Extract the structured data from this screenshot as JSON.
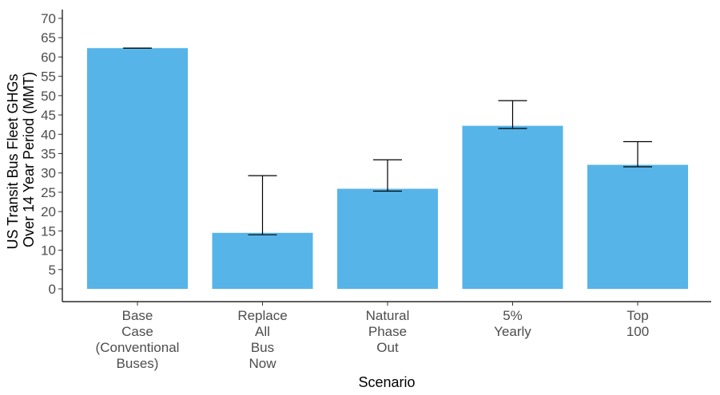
{
  "chart_data": {
    "type": "bar",
    "title": "",
    "xlabel": "Scenario",
    "ylabel_lines": [
      "US Transit Bus Fleet GHGs",
      "Over 14 Year Period (MMT)"
    ],
    "ylim": [
      0,
      70
    ],
    "yticks": [
      0,
      5,
      10,
      15,
      20,
      25,
      30,
      35,
      40,
      45,
      50,
      55,
      60,
      65,
      70
    ],
    "categories": [
      [
        "Base",
        "Case",
        "(Conventional",
        "Buses)"
      ],
      [
        "Replace",
        "All",
        "Bus",
        "Now"
      ],
      [
        "Natural",
        "Phase",
        "Out"
      ],
      [
        "5%",
        "Yearly"
      ],
      [
        "Top",
        "100"
      ]
    ],
    "values": [
      62.3,
      14.5,
      25.9,
      42.2,
      32.1
    ],
    "error_low": [
      62.3,
      14.0,
      25.3,
      41.5,
      31.6
    ],
    "error_high": [
      62.3,
      29.3,
      33.4,
      48.7,
      38.1
    ],
    "bar_color": "#56B4E9",
    "grid": false
  }
}
